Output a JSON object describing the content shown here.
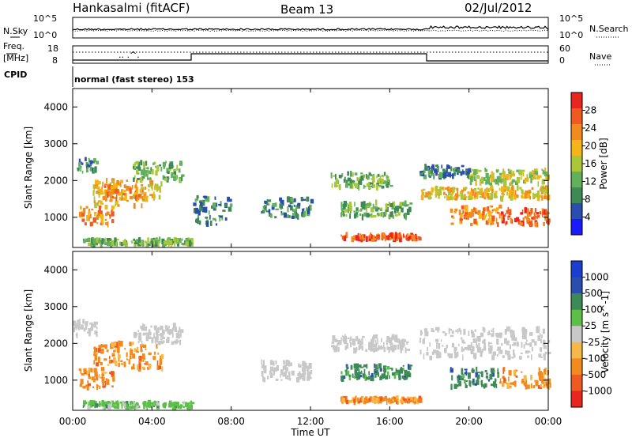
{
  "header": {
    "station": "Hankasalmi (fitACF)",
    "beam": "Beam 13",
    "date": "02/Jul/2012"
  },
  "top_panel": {
    "left_label": "N.Sky",
    "right_label": "N.Search",
    "left_ticks": [
      "10^5",
      "10^0"
    ],
    "right_ticks": [
      "10^5",
      "10^0"
    ]
  },
  "freq_panel": {
    "left_label_1": "Freq.",
    "left_label_2": "[MHz]",
    "left_ticks": [
      "18",
      "8"
    ],
    "right_label": "Nave",
    "right_ticks": [
      "60",
      "0"
    ]
  },
  "cpid": {
    "label": "CPID",
    "mode": "normal (fast stereo) 153"
  },
  "x_axis": {
    "ticks": [
      "00:00",
      "04:00",
      "08:00",
      "12:00",
      "16:00",
      "20:00",
      "00:00"
    ],
    "label": "Time UT"
  },
  "colors": {
    "power": [
      "#1a1aff",
      "#2a4db0",
      "#3d8a56",
      "#62b05a",
      "#a8c83a",
      "#f5b417",
      "#f28a1d",
      "#ee5a1f",
      "#e8261d"
    ],
    "velocity": [
      "#e8261d",
      "#ee5a1f",
      "#f28a1d",
      "#f7b84a",
      "#c8c8c8",
      "#5cc048",
      "#3d8a56",
      "#2a4db0",
      "#1a3fd0"
    ]
  },
  "chart_data": [
    {
      "type": "heatmap",
      "title": "",
      "xlabel": "Time UT",
      "ylabel": "Slant Range [km]",
      "yticks": [
        "1000",
        "2000",
        "3000",
        "4000"
      ],
      "xlim": [
        "00:00",
        "24:00"
      ],
      "ylim": [
        180,
        4500
      ],
      "colorbar": {
        "label": "Power [dB]",
        "ticks": [
          "4",
          "8",
          "12",
          "16",
          "20",
          "24",
          "28"
        ],
        "range": [
          0,
          30
        ]
      },
      "regions": [
        {
          "t": [
            0.2,
            1.2
          ],
          "r": [
            2200,
            2600
          ],
          "level": 8
        },
        {
          "t": [
            0.3,
            2.0
          ],
          "r": [
            800,
            1300
          ],
          "level": 24
        },
        {
          "t": [
            1.0,
            4.5
          ],
          "r": [
            1300,
            2000
          ],
          "level": 20
        },
        {
          "t": [
            1.5,
            3.5
          ],
          "r": [
            1500,
            1900
          ],
          "level": 22
        },
        {
          "t": [
            3.0,
            5.5
          ],
          "r": [
            2000,
            2500
          ],
          "level": 12
        },
        {
          "t": [
            0.5,
            6.0
          ],
          "r": [
            250,
            400
          ],
          "level": 10
        },
        {
          "t": [
            6.0,
            8.0
          ],
          "r": [
            800,
            1600
          ],
          "level": 8
        },
        {
          "t": [
            9.5,
            12.0
          ],
          "r": [
            1000,
            1500
          ],
          "level": 8
        },
        {
          "t": [
            13.5,
            17.0
          ],
          "r": [
            1000,
            1400
          ],
          "level": 12
        },
        {
          "t": [
            13.0,
            16.0
          ],
          "r": [
            1800,
            2200
          ],
          "level": 10
        },
        {
          "t": [
            13.5,
            17.5
          ],
          "r": [
            400,
            520
          ],
          "level": 26
        },
        {
          "t": [
            17.5,
            20.0
          ],
          "r": [
            2100,
            2400
          ],
          "level": 8
        },
        {
          "t": [
            17.5,
            24.0
          ],
          "r": [
            1500,
            1800
          ],
          "level": 20
        },
        {
          "t": [
            20.0,
            24.0
          ],
          "r": [
            1900,
            2300
          ],
          "level": 16
        },
        {
          "t": [
            19.0,
            21.5
          ],
          "r": [
            800,
            1300
          ],
          "level": 24
        },
        {
          "t": [
            21.5,
            24.0
          ],
          "r": [
            800,
            1200
          ],
          "level": 28
        }
      ]
    },
    {
      "type": "heatmap",
      "title": "",
      "xlabel": "Time UT",
      "ylabel": "Slant Range [km]",
      "yticks": [
        "1000",
        "2000",
        "3000",
        "4000"
      ],
      "xlim": [
        "00:00",
        "24:00"
      ],
      "ylim": [
        180,
        4500
      ],
      "colorbar": {
        "label": "Velocity [m s^-1]",
        "ticks": [
          "1000",
          "500",
          "100",
          "25",
          "-25",
          "-100",
          "-500",
          "-1000"
        ],
        "range": [
          -1200,
          1200
        ]
      },
      "regions": [
        {
          "t": [
            0.0,
            1.2
          ],
          "r": [
            2200,
            2600
          ],
          "velocity": 0
        },
        {
          "t": [
            0.3,
            2.0
          ],
          "r": [
            800,
            1300
          ],
          "velocity": -300
        },
        {
          "t": [
            1.0,
            4.5
          ],
          "r": [
            1300,
            2000
          ],
          "velocity": -400
        },
        {
          "t": [
            3.0,
            5.5
          ],
          "r": [
            2000,
            2500
          ],
          "velocity": 0
        },
        {
          "t": [
            0.5,
            6.0
          ],
          "r": [
            250,
            400
          ],
          "velocity": 50
        },
        {
          "t": [
            9.5,
            12.0
          ],
          "r": [
            1000,
            1500
          ],
          "velocity": 0
        },
        {
          "t": [
            13.5,
            17.0
          ],
          "r": [
            1000,
            1400
          ],
          "velocity": 150
        },
        {
          "t": [
            13.0,
            17.0
          ],
          "r": [
            1800,
            2200
          ],
          "velocity": 0
        },
        {
          "t": [
            13.5,
            17.5
          ],
          "r": [
            400,
            520
          ],
          "velocity": -150
        },
        {
          "t": [
            17.5,
            24.0
          ],
          "r": [
            1600,
            2400
          ],
          "velocity": 0
        },
        {
          "t": [
            19.0,
            21.5
          ],
          "r": [
            800,
            1300
          ],
          "velocity": 200
        },
        {
          "t": [
            21.5,
            24.0
          ],
          "r": [
            800,
            1300
          ],
          "velocity": -300
        }
      ]
    }
  ]
}
